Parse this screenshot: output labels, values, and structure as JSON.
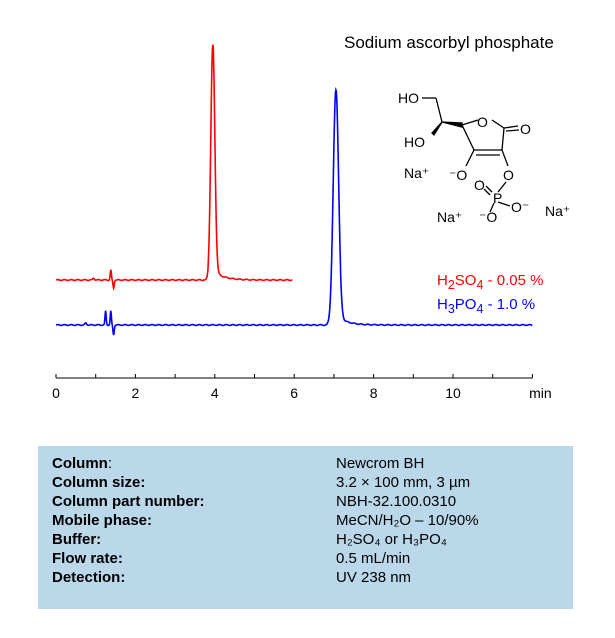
{
  "chart_data": {
    "type": "line",
    "title": "Sodium ascorbyl phosphate",
    "xlabel": "min",
    "xlim": [
      0,
      12
    ],
    "x_ticks": [
      0,
      2,
      4,
      6,
      8,
      10
    ],
    "x_tick_labels": [
      "0",
      "2",
      "4",
      "6",
      "8",
      "10"
    ],
    "grid": false,
    "legend_position": "right",
    "series": [
      {
        "name": "H2SO4 - 0.05 %",
        "label_main": "H",
        "sub1": "2",
        "mid": "SO",
        "sub2": "4",
        "tail": " - 0.05 %",
        "color": "#ff0000",
        "run_end_min": 5.95,
        "peak_rt_min": 3.95,
        "peak_relative_height": 1.0,
        "peak_width_min": 0.12
      },
      {
        "name": "H3PO4 - 1.0 %",
        "label_main": "H",
        "sub1": "3",
        "mid": "PO",
        "sub2": "4",
        "tail": " - 1.0 %",
        "color": "#0000ff",
        "run_end_min": 12.0,
        "peak_rt_min": 7.05,
        "peak_relative_height": 1.0,
        "peak_width_min": 0.16
      }
    ]
  },
  "structure": {
    "labels": [
      "HO",
      "HO",
      "O",
      "O",
      "Na+",
      "-O",
      "O",
      "O",
      "P",
      "O-",
      "Na+",
      "-O",
      "Na+"
    ]
  },
  "conditions": [
    {
      "label": "Column",
      "suffix": ":",
      "value": "Newcrom  BH"
    },
    {
      "label": "Column size:",
      "suffix": "",
      "value": "3.2 × 100 mm, 3 µm"
    },
    {
      "label": "Column part number:",
      "suffix": "",
      "value": "NBH-32.100.0310"
    },
    {
      "label": "Mobile phase:",
      "suffix": "",
      "value": "MeCN/H₂O – 10/90%"
    },
    {
      "label": "Buffer:",
      "suffix": "",
      "value": "H₂SO₄  or  H₃PO₄"
    },
    {
      "label": "Flow rate:",
      "suffix": "",
      "value": "0.5 mL/min"
    },
    {
      "label": "Detection:",
      "suffix": "",
      "value": "UV 238 nm"
    }
  ]
}
